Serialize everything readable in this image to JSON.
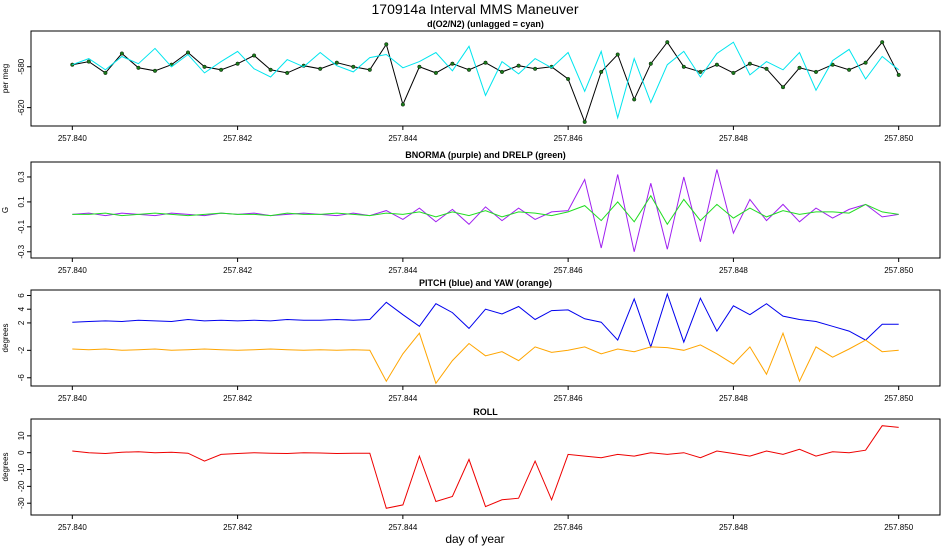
{
  "figure": {
    "title": "170914a   Interval MMS Maneuver",
    "xlabel": "day of year"
  },
  "chart_data": [
    {
      "type": "line",
      "title": "d(O2/N2) (unlagged = cyan)",
      "xlabel": "",
      "ylabel": "per meg",
      "xlim": [
        257.8395,
        257.8505
      ],
      "ylim": [
        -638,
        -545
      ],
      "x_ticks": [
        257.84,
        257.842,
        257.844,
        257.846,
        257.848,
        257.85
      ],
      "x_tick_labels": [
        "257.840",
        "257.842",
        "257.844",
        "257.846",
        "257.848",
        "257.850"
      ],
      "y_ticks": [
        -620,
        -580
      ],
      "y_tick_labels": [
        "-620",
        "-580"
      ],
      "series": [
        {
          "color": "#000000",
          "style": "line+points",
          "point_color": "#1a7a1a",
          "x": [
            257.84,
            257.8402,
            257.8404,
            257.8406,
            257.8408,
            257.841,
            257.8412,
            257.8414,
            257.8416,
            257.8418,
            257.842,
            257.8422,
            257.8424,
            257.8426,
            257.8428,
            257.843,
            257.8432,
            257.8434,
            257.8436,
            257.8438,
            257.844,
            257.8442,
            257.8444,
            257.8446,
            257.8448,
            257.845,
            257.8452,
            257.8454,
            257.8456,
            257.8458,
            257.846,
            257.8462,
            257.8464,
            257.8466,
            257.8468,
            257.847,
            257.8472,
            257.8474,
            257.8476,
            257.8478,
            257.848,
            257.8482,
            257.8484,
            257.8486,
            257.8488,
            257.849,
            257.8492,
            257.8494,
            257.8496,
            257.8498,
            257.85
          ],
          "values": [
            -578,
            -575,
            -586,
            -567,
            -581,
            -584,
            -578,
            -566,
            -580,
            -583,
            -577,
            -569,
            -583,
            -586,
            -579,
            -582,
            -576,
            -580,
            -583,
            -558,
            -617,
            -580,
            -586,
            -577,
            -583,
            -576,
            -585,
            -579,
            -582,
            -580,
            -592,
            -634,
            -585,
            -568,
            -612,
            -577,
            -556,
            -580,
            -585,
            -578,
            -586,
            -577,
            -582,
            -600,
            -581,
            -585,
            -578,
            -583,
            -576,
            -556,
            -588
          ]
        },
        {
          "color": "#00e5ee",
          "style": "line",
          "x": [
            257.84,
            257.8402,
            257.8404,
            257.8406,
            257.8408,
            257.841,
            257.8412,
            257.8414,
            257.8416,
            257.8418,
            257.842,
            257.8422,
            257.8424,
            257.8426,
            257.8428,
            257.843,
            257.8432,
            257.8434,
            257.8436,
            257.8438,
            257.844,
            257.8442,
            257.8444,
            257.8446,
            257.8448,
            257.845,
            257.8452,
            257.8454,
            257.8456,
            257.8458,
            257.846,
            257.8462,
            257.8464,
            257.8466,
            257.8468,
            257.847,
            257.8472,
            257.8474,
            257.8476,
            257.8478,
            257.848,
            257.8482,
            257.8484,
            257.8486,
            257.8488,
            257.849,
            257.8492,
            257.8494,
            257.8496,
            257.8498,
            257.85
          ],
          "values": [
            -578,
            -572,
            -583,
            -570,
            -577,
            -562,
            -580,
            -568,
            -586,
            -575,
            -565,
            -582,
            -590,
            -573,
            -580,
            -566,
            -579,
            -585,
            -571,
            -568,
            -581,
            -575,
            -566,
            -584,
            -560,
            -608,
            -575,
            -587,
            -572,
            -581,
            -566,
            -604,
            -565,
            -630,
            -572,
            -615,
            -578,
            -565,
            -590,
            -567,
            -556,
            -588,
            -575,
            -583,
            -566,
            -603,
            -574,
            -563,
            -592,
            -570,
            -583
          ]
        }
      ]
    },
    {
      "type": "line",
      "title": "BNORMA (purple) and DRELP (green)",
      "xlabel": "",
      "ylabel": "G",
      "xlim": [
        257.8395,
        257.8505
      ],
      "ylim": [
        -0.35,
        0.42
      ],
      "x_ticks": [
        257.84,
        257.842,
        257.844,
        257.846,
        257.848,
        257.85
      ],
      "x_tick_labels": [
        "257.840",
        "257.842",
        "257.844",
        "257.846",
        "257.848",
        "257.850"
      ],
      "y_ticks": [
        -0.3,
        -0.1,
        0.1,
        0.3
      ],
      "y_tick_labels": [
        "-0.3",
        "-0.1",
        "0.1",
        "0.3"
      ],
      "series": [
        {
          "color": "#a020f0",
          "style": "line",
          "x": [
            257.84,
            257.8402,
            257.8404,
            257.8406,
            257.8408,
            257.841,
            257.8412,
            257.8414,
            257.8416,
            257.8418,
            257.842,
            257.8422,
            257.8424,
            257.8426,
            257.8428,
            257.843,
            257.8432,
            257.8434,
            257.8436,
            257.8438,
            257.844,
            257.8442,
            257.8444,
            257.8446,
            257.8448,
            257.845,
            257.8452,
            257.8454,
            257.8456,
            257.8458,
            257.846,
            257.8462,
            257.8464,
            257.8466,
            257.8468,
            257.847,
            257.8472,
            257.8474,
            257.8476,
            257.8478,
            257.848,
            257.8482,
            257.8484,
            257.8486,
            257.8488,
            257.849,
            257.8492,
            257.8494,
            257.8496,
            257.8498,
            257.85
          ],
          "values": [
            0.0,
            0.01,
            -0.01,
            0.01,
            0.0,
            -0.01,
            0.01,
            0.0,
            -0.01,
            0.01,
            0.0,
            0.01,
            -0.01,
            0.0,
            0.01,
            0.0,
            -0.01,
            0.01,
            -0.01,
            0.03,
            -0.04,
            0.05,
            -0.06,
            0.04,
            -0.08,
            0.06,
            -0.05,
            0.05,
            -0.04,
            0.02,
            0.03,
            0.28,
            -0.27,
            0.32,
            -0.3,
            0.25,
            -0.28,
            0.3,
            -0.22,
            0.36,
            -0.15,
            0.12,
            -0.05,
            0.08,
            -0.06,
            0.05,
            -0.03,
            0.04,
            0.08,
            -0.02,
            0.0
          ]
        },
        {
          "color": "#22dd22",
          "style": "line",
          "x": [
            257.84,
            257.8402,
            257.8404,
            257.8406,
            257.8408,
            257.841,
            257.8412,
            257.8414,
            257.8416,
            257.8418,
            257.842,
            257.8422,
            257.8424,
            257.8426,
            257.8428,
            257.843,
            257.8432,
            257.8434,
            257.8436,
            257.8438,
            257.844,
            257.8442,
            257.8444,
            257.8446,
            257.8448,
            257.845,
            257.8452,
            257.8454,
            257.8456,
            257.8458,
            257.846,
            257.8462,
            257.8464,
            257.8466,
            257.8468,
            257.847,
            257.8472,
            257.8474,
            257.8476,
            257.8478,
            257.848,
            257.8482,
            257.8484,
            257.8486,
            257.8488,
            257.849,
            257.8492,
            257.8494,
            257.8496,
            257.8498,
            257.85
          ],
          "values": [
            0.0,
            0.0,
            0.01,
            -0.01,
            0.0,
            0.01,
            0.0,
            -0.01,
            0.0,
            0.01,
            0.0,
            0.0,
            -0.01,
            0.01,
            0.0,
            0.0,
            0.01,
            0.0,
            -0.01,
            0.01,
            0.0,
            0.02,
            -0.02,
            0.02,
            -0.01,
            0.03,
            -0.02,
            0.02,
            0.01,
            -0.01,
            0.02,
            0.07,
            -0.05,
            0.1,
            -0.06,
            0.15,
            -0.08,
            0.12,
            -0.05,
            0.08,
            -0.03,
            0.05,
            -0.02,
            0.03,
            0.0,
            0.02,
            0.02,
            0.01,
            0.08,
            0.02,
            0.0
          ]
        }
      ]
    },
    {
      "type": "line",
      "title": "PITCH (blue) and YAW (orange)",
      "xlabel": "",
      "ylabel": "degrees",
      "xlim": [
        257.8395,
        257.8505
      ],
      "ylim": [
        -7.2,
        6.8
      ],
      "x_ticks": [
        257.84,
        257.842,
        257.844,
        257.846,
        257.848,
        257.85
      ],
      "x_tick_labels": [
        "257.840",
        "257.842",
        "257.844",
        "257.846",
        "257.848",
        "257.850"
      ],
      "y_ticks": [
        -6,
        -2,
        2,
        4,
        6
      ],
      "y_tick_labels": [
        "-6",
        "-2",
        "2",
        "4",
        "6"
      ],
      "series": [
        {
          "color": "#0000ee",
          "style": "line",
          "x": [
            257.84,
            257.8402,
            257.8404,
            257.8406,
            257.8408,
            257.841,
            257.8412,
            257.8414,
            257.8416,
            257.8418,
            257.842,
            257.8422,
            257.8424,
            257.8426,
            257.8428,
            257.843,
            257.8432,
            257.8434,
            257.8436,
            257.8438,
            257.844,
            257.8442,
            257.8444,
            257.8446,
            257.8448,
            257.845,
            257.8452,
            257.8454,
            257.8456,
            257.8458,
            257.846,
            257.8462,
            257.8464,
            257.8466,
            257.8468,
            257.847,
            257.8472,
            257.8474,
            257.8476,
            257.8478,
            257.848,
            257.8482,
            257.8484,
            257.8486,
            257.8488,
            257.849,
            257.8492,
            257.8494,
            257.8496,
            257.8498,
            257.85
          ],
          "values": [
            2.1,
            2.2,
            2.3,
            2.2,
            2.4,
            2.3,
            2.2,
            2.5,
            2.3,
            2.4,
            2.3,
            2.4,
            2.3,
            2.5,
            2.4,
            2.4,
            2.5,
            2.4,
            2.5,
            5.0,
            3.2,
            1.5,
            4.8,
            3.5,
            1.2,
            4.0,
            3.3,
            4.4,
            2.5,
            3.8,
            3.9,
            2.6,
            2.1,
            -0.5,
            5.5,
            -1.5,
            6.2,
            -0.8,
            5.6,
            0.8,
            4.5,
            3.2,
            4.8,
            3.0,
            2.5,
            2.2,
            1.5,
            0.8,
            -0.5,
            1.8,
            1.8
          ]
        },
        {
          "color": "#ffa500",
          "style": "line",
          "x": [
            257.84,
            257.8402,
            257.8404,
            257.8406,
            257.8408,
            257.841,
            257.8412,
            257.8414,
            257.8416,
            257.8418,
            257.842,
            257.8422,
            257.8424,
            257.8426,
            257.8428,
            257.843,
            257.8432,
            257.8434,
            257.8436,
            257.8438,
            257.844,
            257.8442,
            257.8444,
            257.8446,
            257.8448,
            257.845,
            257.8452,
            257.8454,
            257.8456,
            257.8458,
            257.846,
            257.8462,
            257.8464,
            257.8466,
            257.8468,
            257.847,
            257.8472,
            257.8474,
            257.8476,
            257.8478,
            257.848,
            257.8482,
            257.8484,
            257.8486,
            257.8488,
            257.849,
            257.8492,
            257.8494,
            257.8496,
            257.8498,
            257.85
          ],
          "values": [
            -1.8,
            -1.9,
            -1.8,
            -2.0,
            -1.9,
            -1.8,
            -2.0,
            -1.9,
            -1.8,
            -1.9,
            -2.0,
            -1.9,
            -1.8,
            -1.9,
            -2.0,
            -1.9,
            -2.0,
            -1.9,
            -2.0,
            -6.5,
            -2.5,
            0.5,
            -6.8,
            -3.5,
            -1.0,
            -2.8,
            -2.2,
            -3.5,
            -1.5,
            -2.3,
            -2.0,
            -1.5,
            -2.5,
            -1.8,
            -2.2,
            -1.5,
            -1.6,
            -2.0,
            -1.2,
            -2.5,
            -4.0,
            -1.5,
            -5.5,
            0.5,
            -6.5,
            -1.5,
            -3.0,
            -1.8,
            -0.5,
            -2.2,
            -2.0
          ]
        }
      ]
    },
    {
      "type": "line",
      "title": "ROLL",
      "xlabel": "",
      "ylabel": "degrees",
      "xlim": [
        257.8395,
        257.8505
      ],
      "ylim": [
        -37,
        20
      ],
      "x_ticks": [
        257.84,
        257.842,
        257.844,
        257.846,
        257.848,
        257.85
      ],
      "x_tick_labels": [
        "257.840",
        "257.842",
        "257.844",
        "257.846",
        "257.848",
        "257.850"
      ],
      "y_ticks": [
        -30,
        -20,
        -10,
        0,
        10
      ],
      "y_tick_labels": [
        "-30",
        "-20",
        "-10",
        "0",
        "10"
      ],
      "series": [
        {
          "color": "#ee0000",
          "style": "line",
          "x": [
            257.84,
            257.8402,
            257.8404,
            257.8406,
            257.8408,
            257.841,
            257.8412,
            257.8414,
            257.8416,
            257.8418,
            257.842,
            257.8422,
            257.8424,
            257.8426,
            257.8428,
            257.843,
            257.8432,
            257.8434,
            257.8436,
            257.8438,
            257.844,
            257.8442,
            257.8444,
            257.8446,
            257.8448,
            257.845,
            257.8452,
            257.8454,
            257.8456,
            257.8458,
            257.846,
            257.8462,
            257.8464,
            257.8466,
            257.8468,
            257.847,
            257.8472,
            257.8474,
            257.8476,
            257.8478,
            257.848,
            257.8482,
            257.8484,
            257.8486,
            257.8488,
            257.849,
            257.8492,
            257.8494,
            257.8496,
            257.8498,
            257.85
          ],
          "values": [
            1.0,
            0.0,
            -0.5,
            0.3,
            0.5,
            0.0,
            0.2,
            -0.3,
            -5.0,
            -1.0,
            -0.5,
            0.0,
            -0.3,
            -0.5,
            0.0,
            -0.2,
            -0.5,
            -0.3,
            -0.3,
            -33.0,
            -31.0,
            -2.0,
            -29.0,
            -26.0,
            -4.0,
            -32.0,
            -28.0,
            -27.0,
            -5.0,
            -28.0,
            -1.0,
            -2.0,
            -3.0,
            -1.0,
            -2.0,
            0.0,
            -1.0,
            0.0,
            -3.0,
            1.0,
            -0.5,
            -2.0,
            1.0,
            -1.0,
            2.0,
            -2.0,
            0.5,
            0.0,
            1.5,
            16.0,
            15.0
          ]
        }
      ]
    }
  ]
}
